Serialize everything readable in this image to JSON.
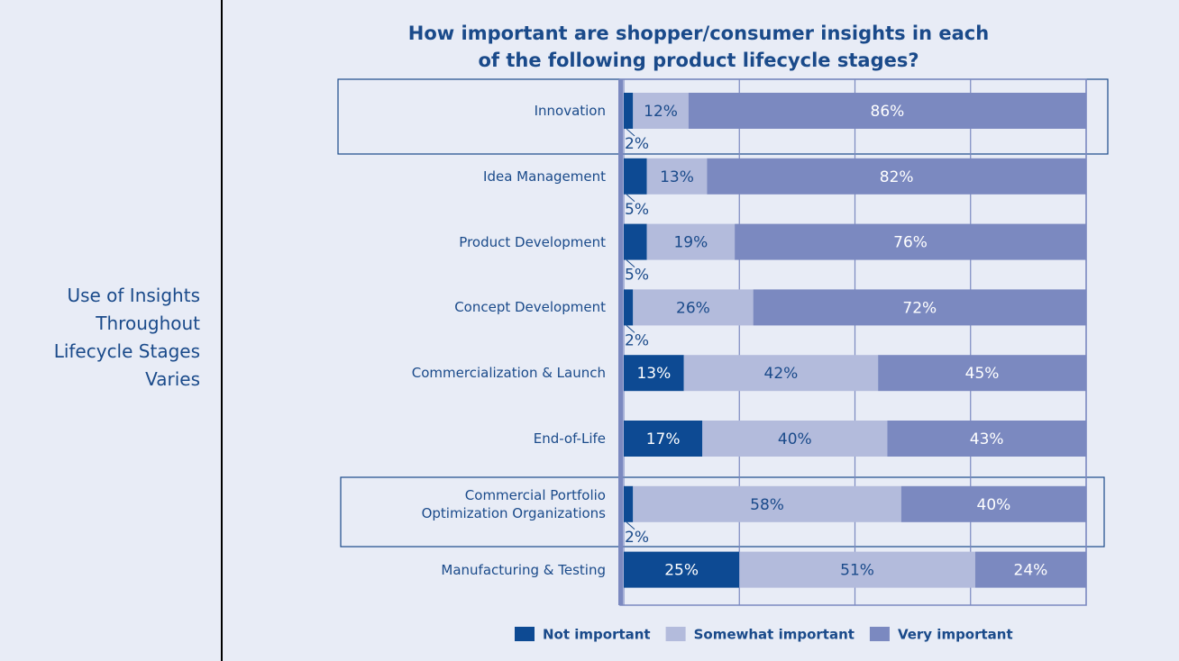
{
  "chart_data": {
    "type": "stacked-bar-horizontal",
    "title": "How important are shopper/consumer insights in each\nof the following product lifecycle stages?",
    "side_text": "Use of Insights\nThroughout\nLifecycle Stages\nVaries",
    "categories": [
      "Innovation",
      "Idea Management",
      "Product Development",
      "Concept Development",
      "Commercialization & Launch",
      "End-of-Life",
      "Commercial Portfolio\nOptimization Organizations",
      "Manufacturing & Testing"
    ],
    "series": [
      {
        "name": "Not important",
        "color": "#0d4a93",
        "label_color": "#ffffff",
        "values": [
          2,
          5,
          5,
          2,
          13,
          17,
          2,
          25
        ],
        "value_labels": [
          "2%",
          "5%",
          "5%",
          "2%",
          "13%",
          "17%",
          "2%",
          "25%"
        ]
      },
      {
        "name": "Somewhat important",
        "color": "#b3bbdc",
        "label_color": "#1a4a8a",
        "values": [
          12,
          13,
          19,
          26,
          42,
          40,
          58,
          51
        ],
        "value_labels": [
          "12%",
          "13%",
          "19%",
          "26%",
          "42%",
          "40%",
          "58%",
          "51%"
        ]
      },
      {
        "name": "Very important",
        "color": "#7b89c0",
        "label_color": "#ffffff",
        "values": [
          86,
          82,
          76,
          72,
          45,
          43,
          40,
          24
        ],
        "value_labels": [
          "86%",
          "82%",
          "76%",
          "72%",
          "45%",
          "43%",
          "40%",
          "24%"
        ]
      }
    ],
    "xlim": [
      0,
      100
    ],
    "xticks": [
      0,
      25,
      50,
      75,
      100
    ],
    "grid": true,
    "legend": "bottom"
  }
}
